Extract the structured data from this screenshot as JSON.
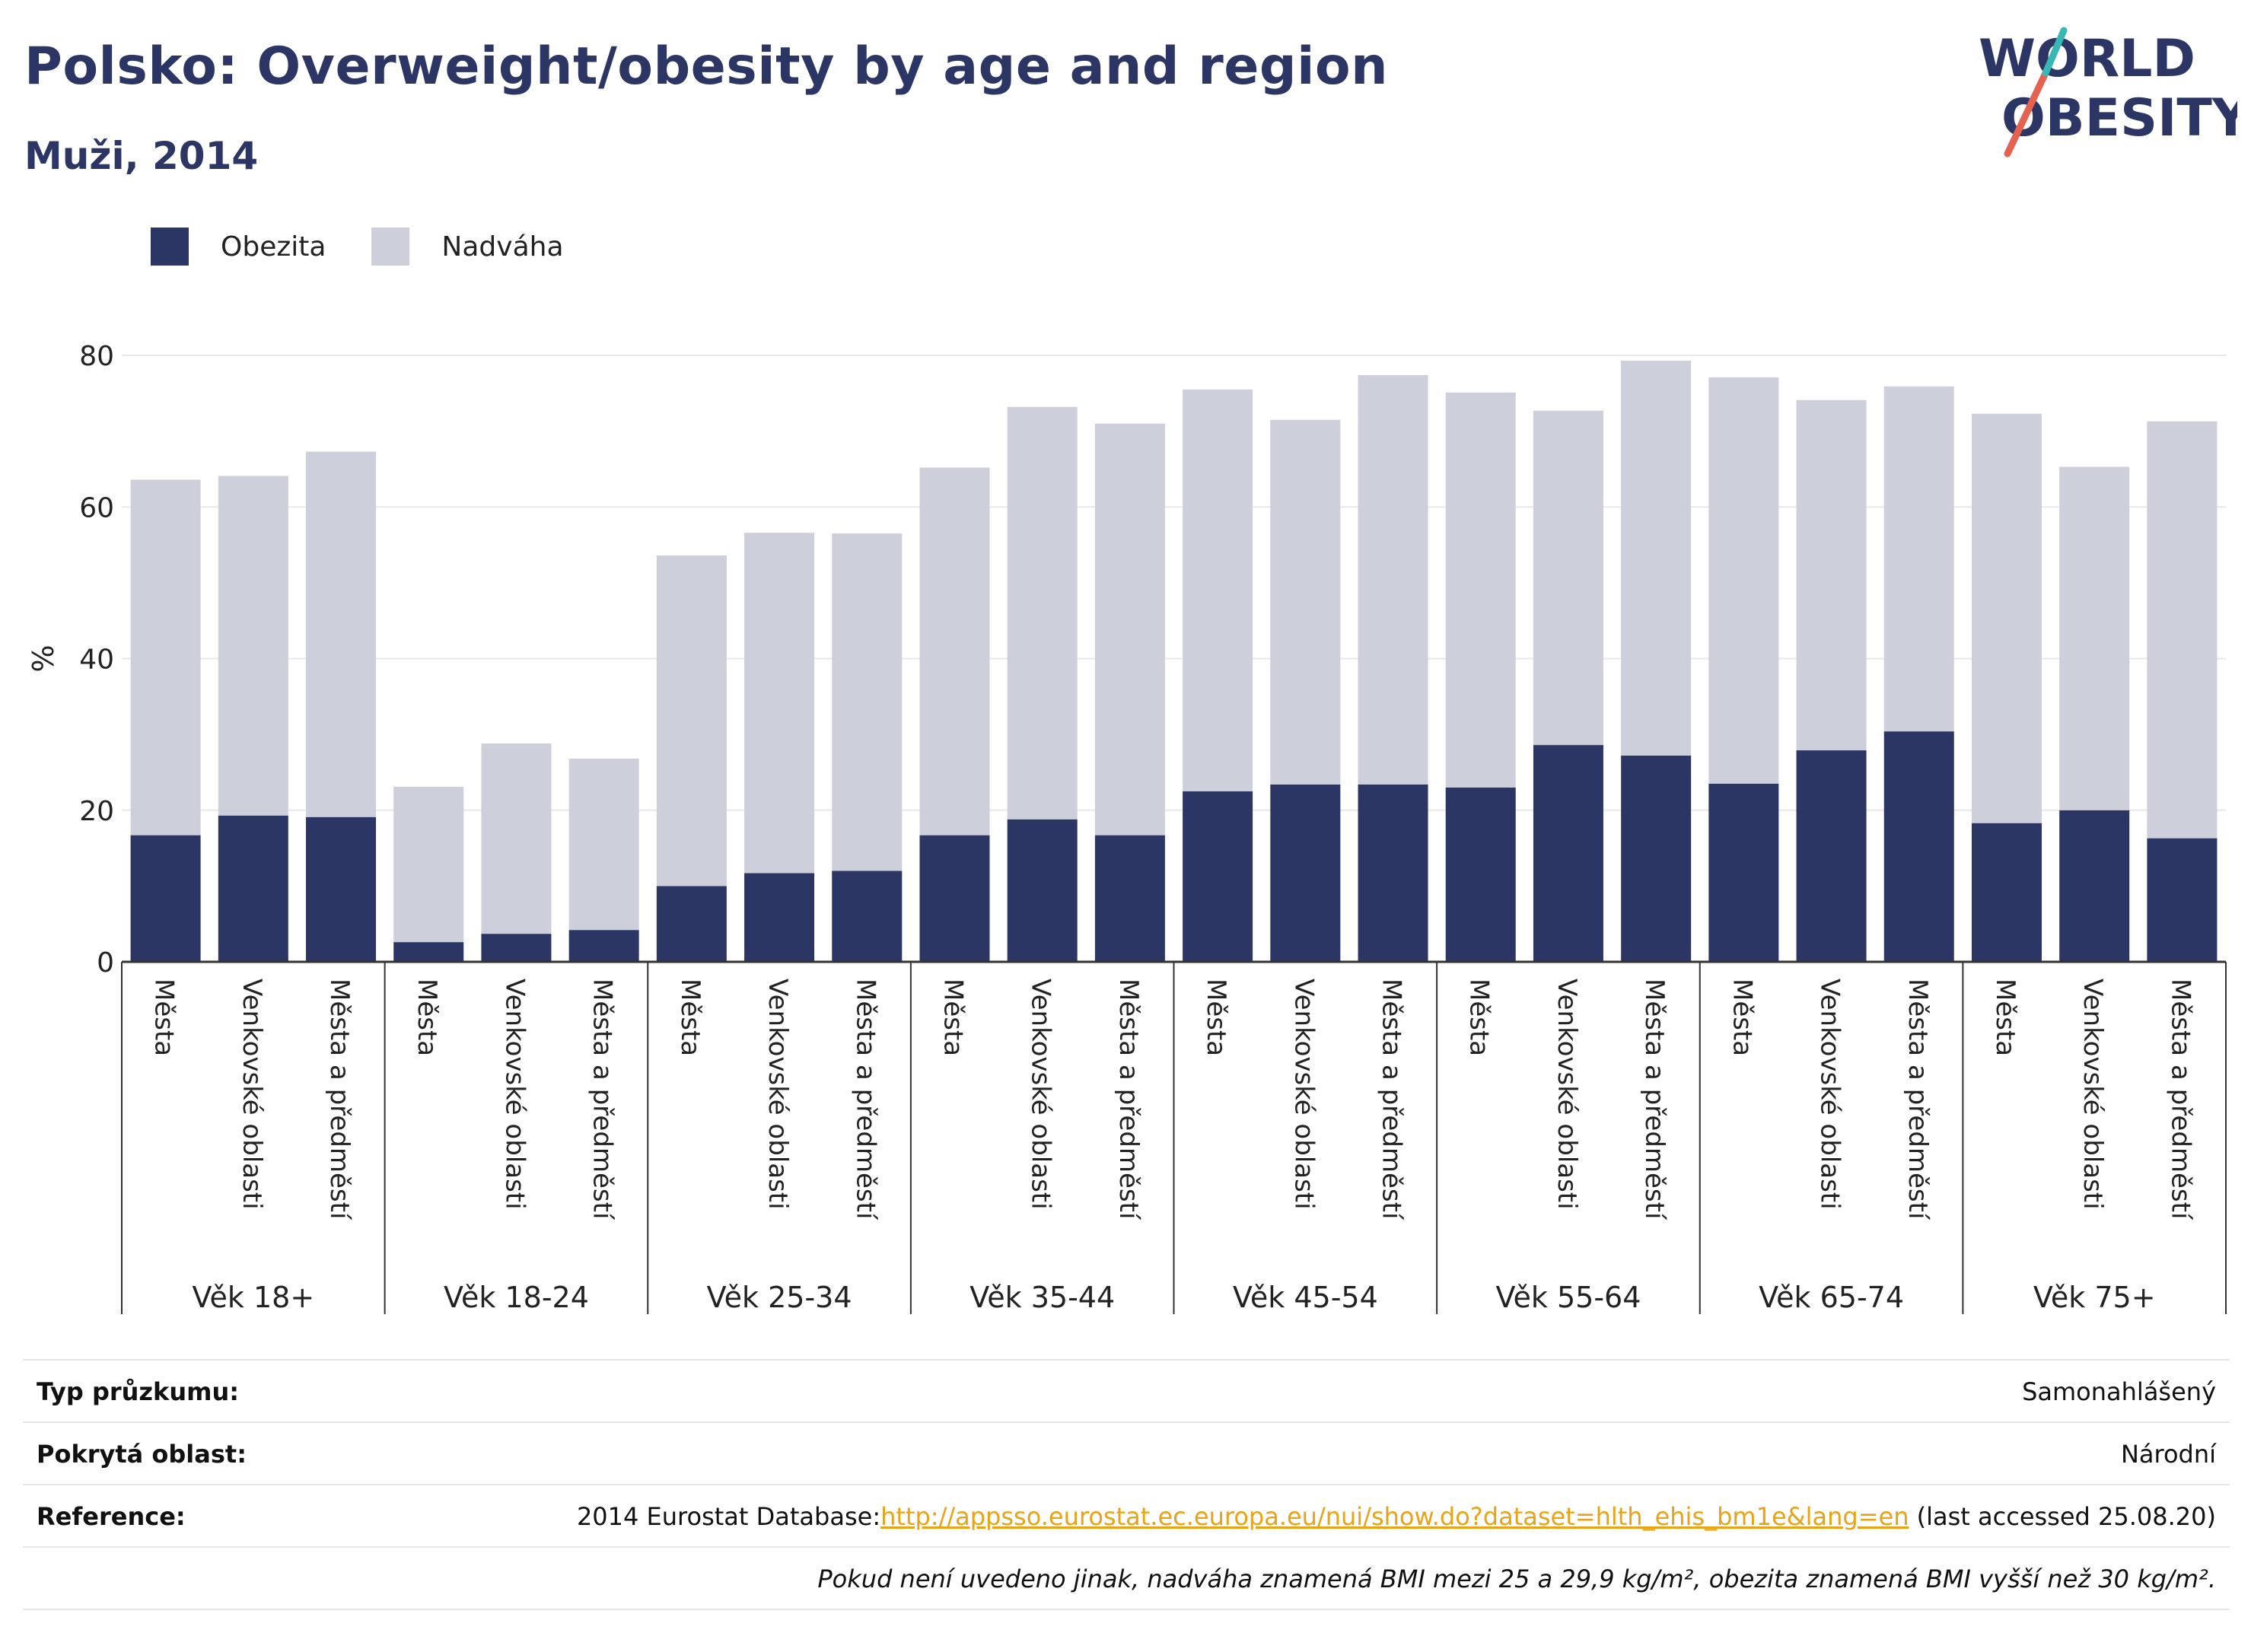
{
  "header": {
    "title": "Polsko: Overweight/obesity by age and region",
    "subtitle": "Muži, 2014"
  },
  "logo": {
    "line1": "WORLD",
    "line2": "OBESITY"
  },
  "legend": [
    {
      "label": "Obezita",
      "color": "#2b3664"
    },
    {
      "label": "Nadváha",
      "color": "#cdcfda"
    }
  ],
  "chart_data": {
    "type": "bar",
    "stacked": true,
    "ylabel": "%",
    "ylim": [
      0,
      80
    ],
    "yticks": [
      0,
      20,
      40,
      60,
      80
    ],
    "grid": true,
    "legend_position": "top-left",
    "groups": [
      "Věk 18+",
      "Věk 18-24",
      "Věk 25-34",
      "Věk 35-44",
      "Věk 45-54",
      "Věk 55-64",
      "Věk 65-74",
      "Věk 75+"
    ],
    "categories": [
      "Města",
      "Venkovské oblasti",
      "Města a předměstí"
    ],
    "series": [
      {
        "name": "Obezita",
        "color": "#2b3664",
        "values": [
          [
            16.7,
            19.3,
            19.1
          ],
          [
            2.6,
            3.7,
            4.2
          ],
          [
            10.0,
            11.7,
            12.0
          ],
          [
            16.7,
            18.8,
            16.7
          ],
          [
            22.5,
            23.4,
            23.4
          ],
          [
            23.0,
            28.6,
            27.2
          ],
          [
            23.5,
            27.9,
            30.4
          ],
          [
            18.3,
            20.0,
            16.3
          ]
        ]
      },
      {
        "name": "Nadváha",
        "color": "#cdcfda",
        "values": [
          [
            46.9,
            44.8,
            48.2
          ],
          [
            20.5,
            25.1,
            22.6
          ],
          [
            43.6,
            44.9,
            44.5
          ],
          [
            48.5,
            54.4,
            54.3
          ],
          [
            53.0,
            48.1,
            54.0
          ],
          [
            52.1,
            44.1,
            52.1
          ],
          [
            53.6,
            46.2,
            45.5
          ],
          [
            54.0,
            45.3,
            55.0
          ]
        ]
      }
    ]
  },
  "meta": {
    "survey_type_label": "Typ průzkumu:",
    "survey_type_value": "Samonahlášený",
    "area_label": "Pokrytá oblast:",
    "area_value": "Národní",
    "reference_label": "Reference:",
    "reference_prefix": "2014 Eurostat Database:",
    "reference_link": "http://appsso.eurostat.ec.europa.eu/nui/show.do?dataset=hlth_ehis_bm1e&lang=en",
    "reference_suffix": " (last accessed 25.08.20)",
    "note": "Pokud není uvedeno jinak, nadváha znamená BMI mezi 25 a 29,9 kg/m², obezita znamená BMI vyšší než 30 kg/m²."
  }
}
